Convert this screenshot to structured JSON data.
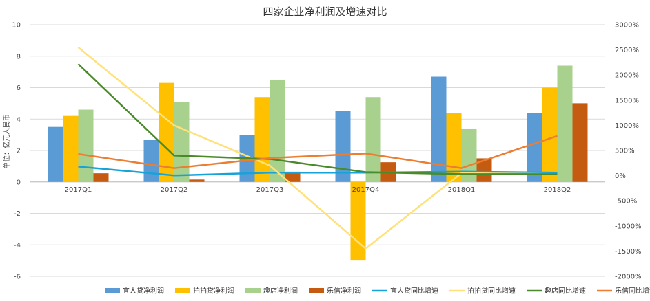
{
  "chart_data": {
    "type": "bar",
    "title": "四家企业净利润及增速对比",
    "ylabel": "单位：亿元人民币",
    "categories": [
      "2017Q1",
      "2017Q2",
      "2017Q3",
      "2017Q4",
      "2018Q1",
      "2018Q2"
    ],
    "ylim": [
      -6,
      10
    ],
    "yticks": [
      -6,
      -4,
      -2,
      0,
      2,
      4,
      6,
      8,
      10
    ],
    "y2lim": [
      -2000,
      3000
    ],
    "y2ticks": [
      -2000,
      -1500,
      -1000,
      -500,
      0,
      500,
      1000,
      1500,
      2000,
      2500,
      3000
    ],
    "y2tick_labels": [
      "-2000%",
      "-1500%",
      "-1000%",
      "-500%",
      "0%",
      "500%",
      "1000%",
      "1500%",
      "2000%",
      "2500%",
      "3000%"
    ],
    "bar_series": [
      {
        "name": "宜人贷净利润",
        "color": "#5b9bd5",
        "values": [
          3.5,
          2.7,
          3.0,
          4.5,
          6.7,
          4.4
        ]
      },
      {
        "name": "拍拍贷净利润",
        "color": "#ffc000",
        "values": [
          4.2,
          6.3,
          5.4,
          -5.0,
          4.4,
          6.0
        ]
      },
      {
        "name": "趣店净利润",
        "color": "#a9d18e",
        "values": [
          4.6,
          5.1,
          6.5,
          5.4,
          3.4,
          7.4
        ]
      },
      {
        "name": "乐信净利润",
        "color": "#c55a11",
        "values": [
          0.55,
          0.15,
          0.65,
          1.25,
          1.5,
          5.0
        ]
      }
    ],
    "line_series": [
      {
        "name": "宜人贷同比增速",
        "color": "#17a2d8",
        "values": [
          180,
          5,
          60,
          60,
          80,
          60
        ]
      },
      {
        "name": "拍拍贷同比增速",
        "color": "#ffe17a",
        "values": [
          2550,
          1000,
          200,
          -1450,
          50,
          30
        ]
      },
      {
        "name": "趣店同比增速",
        "color": "#4a8a2a",
        "values": [
          2220,
          400,
          330,
          70,
          30,
          30
        ]
      },
      {
        "name": "乐信同比增速",
        "color": "#ed7d31",
        "values": [
          430,
          150,
          350,
          440,
          150,
          790
        ]
      }
    ]
  }
}
